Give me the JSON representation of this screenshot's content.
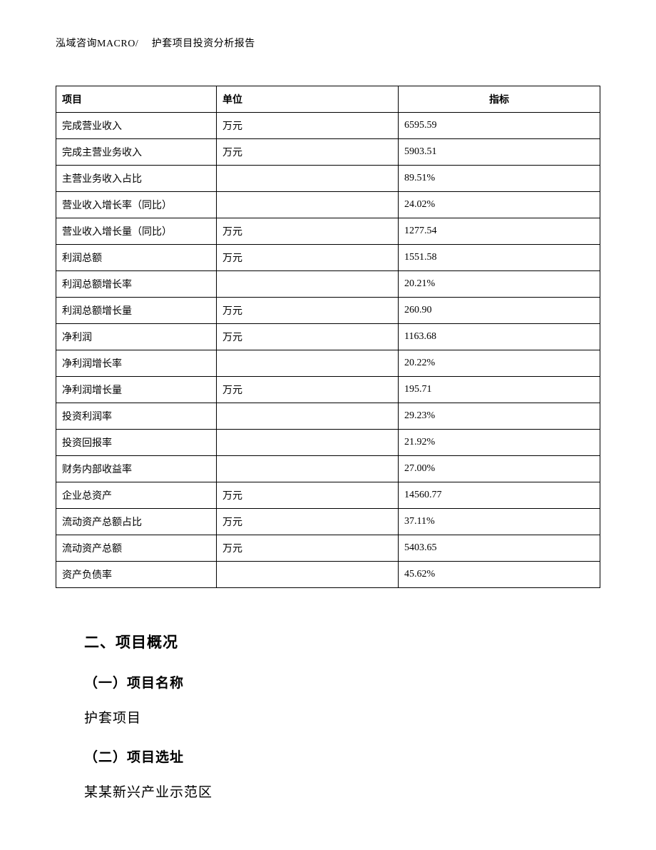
{
  "header": {
    "text": "泓域咨询MACRO/　 护套项目投资分析报告"
  },
  "table": {
    "columns": [
      "项目",
      "单位",
      "指标"
    ],
    "rows": [
      {
        "item": "完成营业收入",
        "unit": "万元",
        "value": "6595.59"
      },
      {
        "item": "完成主营业务收入",
        "unit": "万元",
        "value": "5903.51"
      },
      {
        "item": "主营业务收入占比",
        "unit": "",
        "value": "89.51%"
      },
      {
        "item": "营业收入增长率（同比）",
        "unit": "",
        "value": "24.02%"
      },
      {
        "item": "营业收入增长量（同比）",
        "unit": "万元",
        "value": "1277.54"
      },
      {
        "item": "利润总额",
        "unit": "万元",
        "value": "1551.58"
      },
      {
        "item": "利润总额增长率",
        "unit": "",
        "value": "20.21%"
      },
      {
        "item": "利润总额增长量",
        "unit": "万元",
        "value": "260.90"
      },
      {
        "item": "净利润",
        "unit": "万元",
        "value": "1163.68"
      },
      {
        "item": "净利润增长率",
        "unit": "",
        "value": "20.22%"
      },
      {
        "item": "净利润增长量",
        "unit": "万元",
        "value": "195.71"
      },
      {
        "item": "投资利润率",
        "unit": "",
        "value": "29.23%"
      },
      {
        "item": "投资回报率",
        "unit": "",
        "value": "21.92%"
      },
      {
        "item": "财务内部收益率",
        "unit": "",
        "value": "27.00%"
      },
      {
        "item": "企业总资产",
        "unit": "万元",
        "value": "14560.77"
      },
      {
        "item": "流动资产总额占比",
        "unit": "万元",
        "value": "37.11%"
      },
      {
        "item": "流动资产总额",
        "unit": "万元",
        "value": "5403.65"
      },
      {
        "item": "资产负债率",
        "unit": "",
        "value": "45.62%"
      }
    ]
  },
  "sections": {
    "overview_heading": "二、项目概况",
    "name_heading": "（一）项目名称",
    "name_value": "护套项目",
    "location_heading": "（二）项目选址",
    "location_value": "某某新兴产业示范区"
  },
  "style": {
    "background_color": "#ffffff",
    "text_color": "#000000",
    "border_color": "#000000",
    "body_fontsize": 19,
    "table_fontsize": 14,
    "header_fontsize": 14
  }
}
